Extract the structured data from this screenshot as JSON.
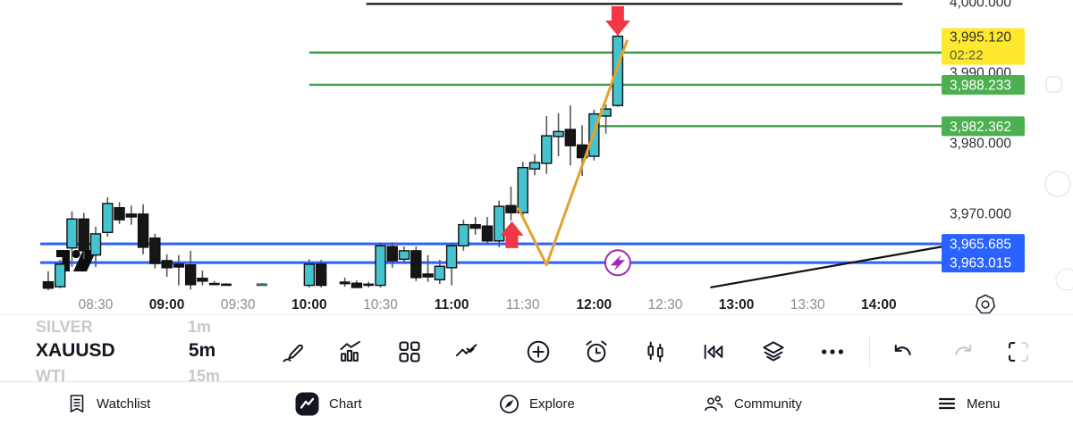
{
  "app": {
    "name": "trading-chart-mobile"
  },
  "chart_data": {
    "type": "candlestick",
    "symbol": "XAUUSD",
    "interval": "5m",
    "colors": {
      "up_candle": "#45C4CF",
      "down_candle": "#161616",
      "candle_border": "#101010",
      "wick": "#565656",
      "green_level": "#3D9C4B",
      "green_label_bg": "#4CAF50",
      "blue_level": "#2962FF",
      "blue_label_bg": "#2962FF",
      "yellow_label_bg": "#FFE92E",
      "orange_line": "#E3A12F",
      "red_arrow": "#F23645",
      "purple_marker": "#9C27B0",
      "black_line": "#111111",
      "axis_text": "#2b2f38",
      "axis_text_faded": "#8b8e98"
    },
    "price_axis": {
      "ticks": [
        {
          "label": "4,000.000",
          "value": 4000
        },
        {
          "label": "3,990.000",
          "value": 3990
        },
        {
          "label": "3,980.000",
          "value": 3980
        },
        {
          "label": "3,970.000",
          "value": 3970
        }
      ],
      "current_price": {
        "label": "3,995.120",
        "value": 3995.12,
        "countdown": "02:22"
      },
      "level_labels": [
        {
          "label": "3,988.233",
          "value": 3988.233,
          "color": "green"
        },
        {
          "label": "3,982.362",
          "value": 3982.362,
          "color": "green"
        },
        {
          "label": "3,965.685",
          "value": 3965.685,
          "color": "blue"
        },
        {
          "label": "3,963.015",
          "value": 3963.015,
          "color": "blue"
        }
      ]
    },
    "time_axis": {
      "labels": [
        {
          "t": "08:30",
          "bold": false
        },
        {
          "t": "09:00",
          "bold": true
        },
        {
          "t": "09:30",
          "bold": false
        },
        {
          "t": "10:00",
          "bold": true
        },
        {
          "t": "10:30",
          "bold": false
        },
        {
          "t": "11:00",
          "bold": true
        },
        {
          "t": "11:30",
          "bold": false
        },
        {
          "t": "12:00",
          "bold": true
        },
        {
          "t": "12:30",
          "bold": false
        },
        {
          "t": "13:00",
          "bold": true
        },
        {
          "t": "13:30",
          "bold": false
        },
        {
          "t": "14:00",
          "bold": true
        }
      ]
    },
    "levels": [
      {
        "price": 3992.8,
        "color": "green",
        "start": "10:00"
      },
      {
        "price": 3988.233,
        "color": "green",
        "start": "10:00"
      },
      {
        "price": 3982.362,
        "color": "green",
        "start": "12:00"
      },
      {
        "price": 3965.685,
        "color": "blue",
        "start": null
      },
      {
        "price": 3963.015,
        "color": "blue",
        "start": null
      }
    ],
    "trend_lines": [
      {
        "name": "top-line",
        "p1": {
          "t": "10:24",
          "price": 3999.7
        },
        "p2": {
          "t": "14:10",
          "price": 3999.7
        }
      },
      {
        "name": "rising-trendline",
        "p1": {
          "t": "12:49",
          "price": 3959.5
        },
        "p2": {
          "t": "14:27",
          "price": 3965.3
        }
      }
    ],
    "zigzag": {
      "color": "orange",
      "points": [
        {
          "t": "11:28",
          "price": 3970.8
        },
        {
          "t": "11:40",
          "price": 3962.7
        },
        {
          "t": "12:14",
          "price": 3994.6
        }
      ]
    },
    "arrows": [
      {
        "direction": "up",
        "t": "11:25",
        "meaning": "buy-signal"
      },
      {
        "direction": "down",
        "t": "12:10",
        "meaning": "sell-signal"
      }
    ],
    "markers": [
      {
        "icon": "lightning-circle-icon",
        "t": "12:10",
        "price": 3963.0
      }
    ],
    "watermark_icon": "tradingview-logo",
    "candles": [
      {
        "t": "08:10",
        "o": 3960.3,
        "h": 3961.8,
        "l": 3959.1,
        "c": 3959.4
      },
      {
        "t": "08:15",
        "o": 3959.6,
        "h": 3963.4,
        "l": 3959.4,
        "c": 3962.8
      },
      {
        "t": "08:20",
        "o": 3965.1,
        "h": 3970.3,
        "l": 3962.4,
        "c": 3969.2
      },
      {
        "t": "08:25",
        "o": 3969.2,
        "h": 3970.1,
        "l": 3963.5,
        "c": 3964.7
      },
      {
        "t": "08:30",
        "o": 3964.1,
        "h": 3968.1,
        "l": 3962.4,
        "c": 3967.1
      },
      {
        "t": "08:35",
        "o": 3967.3,
        "h": 3972.3,
        "l": 3966.7,
        "c": 3971.4
      },
      {
        "t": "08:40",
        "o": 3970.8,
        "h": 3971.6,
        "l": 3968.5,
        "c": 3969.1
      },
      {
        "t": "08:45",
        "o": 3969.9,
        "h": 3971.1,
        "l": 3968.4,
        "c": 3969.5
      },
      {
        "t": "08:50",
        "o": 3969.9,
        "h": 3971.3,
        "l": 3964.2,
        "c": 3965.2
      },
      {
        "t": "08:55",
        "o": 3966.5,
        "h": 3967.1,
        "l": 3962.2,
        "c": 3962.9
      },
      {
        "t": "09:00",
        "o": 3963.3,
        "h": 3964.2,
        "l": 3961.0,
        "c": 3962.3
      },
      {
        "t": "09:05",
        "o": 3962.8,
        "h": 3964.1,
        "l": 3959.8,
        "c": 3962.4
      },
      {
        "t": "09:10",
        "o": 3962.7,
        "h": 3964.7,
        "l": 3959.2,
        "c": 3959.9
      },
      {
        "t": "09:15",
        "o": 3960.8,
        "h": 3961.9,
        "l": 3959.8,
        "c": 3960.4
      },
      {
        "t": "09:20",
        "o": 3960.1,
        "h": 3960.4,
        "l": 3959.8,
        "c": 3960.0
      },
      {
        "t": "09:25",
        "o": 3960.0,
        "h": 3960.1,
        "l": 3959.8,
        "c": 3959.9
      },
      {
        "t": "09:40",
        "o": 3960.0,
        "h": 3960.1,
        "l": 3959.9,
        "c": 3960.0
      },
      {
        "t": "10:00",
        "o": 3959.8,
        "h": 3963.5,
        "l": 3959.5,
        "c": 3962.8
      },
      {
        "t": "10:05",
        "o": 3962.8,
        "h": 3963.4,
        "l": 3959.5,
        "c": 3959.8
      },
      {
        "t": "10:15",
        "o": 3960.3,
        "h": 3960.9,
        "l": 3959.6,
        "c": 3960.0
      },
      {
        "t": "10:20",
        "o": 3960.1,
        "h": 3960.5,
        "l": 3959.4,
        "c": 3959.5
      },
      {
        "t": "10:25",
        "o": 3960.0,
        "h": 3960.3,
        "l": 3959.5,
        "c": 3959.8
      },
      {
        "t": "10:30",
        "o": 3959.8,
        "h": 3965.9,
        "l": 3959.5,
        "c": 3965.4
      },
      {
        "t": "10:35",
        "o": 3965.3,
        "h": 3965.9,
        "l": 3962.3,
        "c": 3963.3
      },
      {
        "t": "10:40",
        "o": 3963.5,
        "h": 3965.3,
        "l": 3962.9,
        "c": 3964.7
      },
      {
        "t": "10:45",
        "o": 3964.7,
        "h": 3965.3,
        "l": 3960.4,
        "c": 3960.9
      },
      {
        "t": "10:50",
        "o": 3961.4,
        "h": 3964.1,
        "l": 3960.3,
        "c": 3961.0
      },
      {
        "t": "10:55",
        "o": 3960.6,
        "h": 3963.4,
        "l": 3960.0,
        "c": 3962.5
      },
      {
        "t": "11:00",
        "o": 3962.3,
        "h": 3965.8,
        "l": 3959.8,
        "c": 3965.4
      },
      {
        "t": "11:05",
        "o": 3965.4,
        "h": 3969.1,
        "l": 3964.7,
        "c": 3968.4
      },
      {
        "t": "11:10",
        "o": 3968.4,
        "h": 3969.5,
        "l": 3967.0,
        "c": 3967.9
      },
      {
        "t": "11:15",
        "o": 3968.2,
        "h": 3969.5,
        "l": 3965.6,
        "c": 3966.1
      },
      {
        "t": "11:20",
        "o": 3966.1,
        "h": 3971.8,
        "l": 3965.2,
        "c": 3971.0
      },
      {
        "t": "11:25",
        "o": 3971.1,
        "h": 3973.8,
        "l": 3969.0,
        "c": 3970.1
      },
      {
        "t": "11:30",
        "o": 3970.1,
        "h": 3977.3,
        "l": 3969.5,
        "c": 3976.5
      },
      {
        "t": "11:35",
        "o": 3976.3,
        "h": 3978.4,
        "l": 3975.4,
        "c": 3977.2
      },
      {
        "t": "11:40",
        "o": 3977.1,
        "h": 3983.8,
        "l": 3975.6,
        "c": 3981.0
      },
      {
        "t": "11:45",
        "o": 3980.9,
        "h": 3984.2,
        "l": 3978.1,
        "c": 3981.6
      },
      {
        "t": "11:50",
        "o": 3981.9,
        "h": 3985.3,
        "l": 3976.8,
        "c": 3979.6
      },
      {
        "t": "11:55",
        "o": 3979.7,
        "h": 3982.5,
        "l": 3975.3,
        "c": 3977.9
      },
      {
        "t": "12:00",
        "o": 3978.1,
        "h": 3984.7,
        "l": 3977.5,
        "c": 3984.1
      },
      {
        "t": "12:05",
        "o": 3983.8,
        "h": 3985.4,
        "l": 3981.3,
        "c": 3984.8
      },
      {
        "t": "12:10",
        "o": 3985.3,
        "h": 3995.7,
        "l": 3985.1,
        "c": 3995.12
      }
    ],
    "axis_settings_icon": "time-axis-settings-icon"
  },
  "picker": {
    "rows": [
      {
        "symbol": "SILVER",
        "interval": "1m",
        "active": false
      },
      {
        "symbol": "XAUUSD",
        "interval": "5m",
        "active": true
      },
      {
        "symbol": "WTI",
        "interval": "15m",
        "active": false
      }
    ]
  },
  "toolbar": {
    "tools": [
      "draw",
      "indicators",
      "layouts",
      "patterns",
      "add",
      "alert",
      "candle-style",
      "replay",
      "object-tree",
      "more",
      "undo",
      "redo",
      "fullscreen"
    ]
  },
  "nav": {
    "items": [
      {
        "label": "Watchlist",
        "icon": "watchlist",
        "active": false
      },
      {
        "label": "Chart",
        "icon": "chart",
        "active": true
      },
      {
        "label": "Explore",
        "icon": "explore",
        "active": false
      },
      {
        "label": "Community",
        "icon": "community",
        "active": false
      },
      {
        "label": "Menu",
        "icon": "menu",
        "active": false
      }
    ]
  }
}
